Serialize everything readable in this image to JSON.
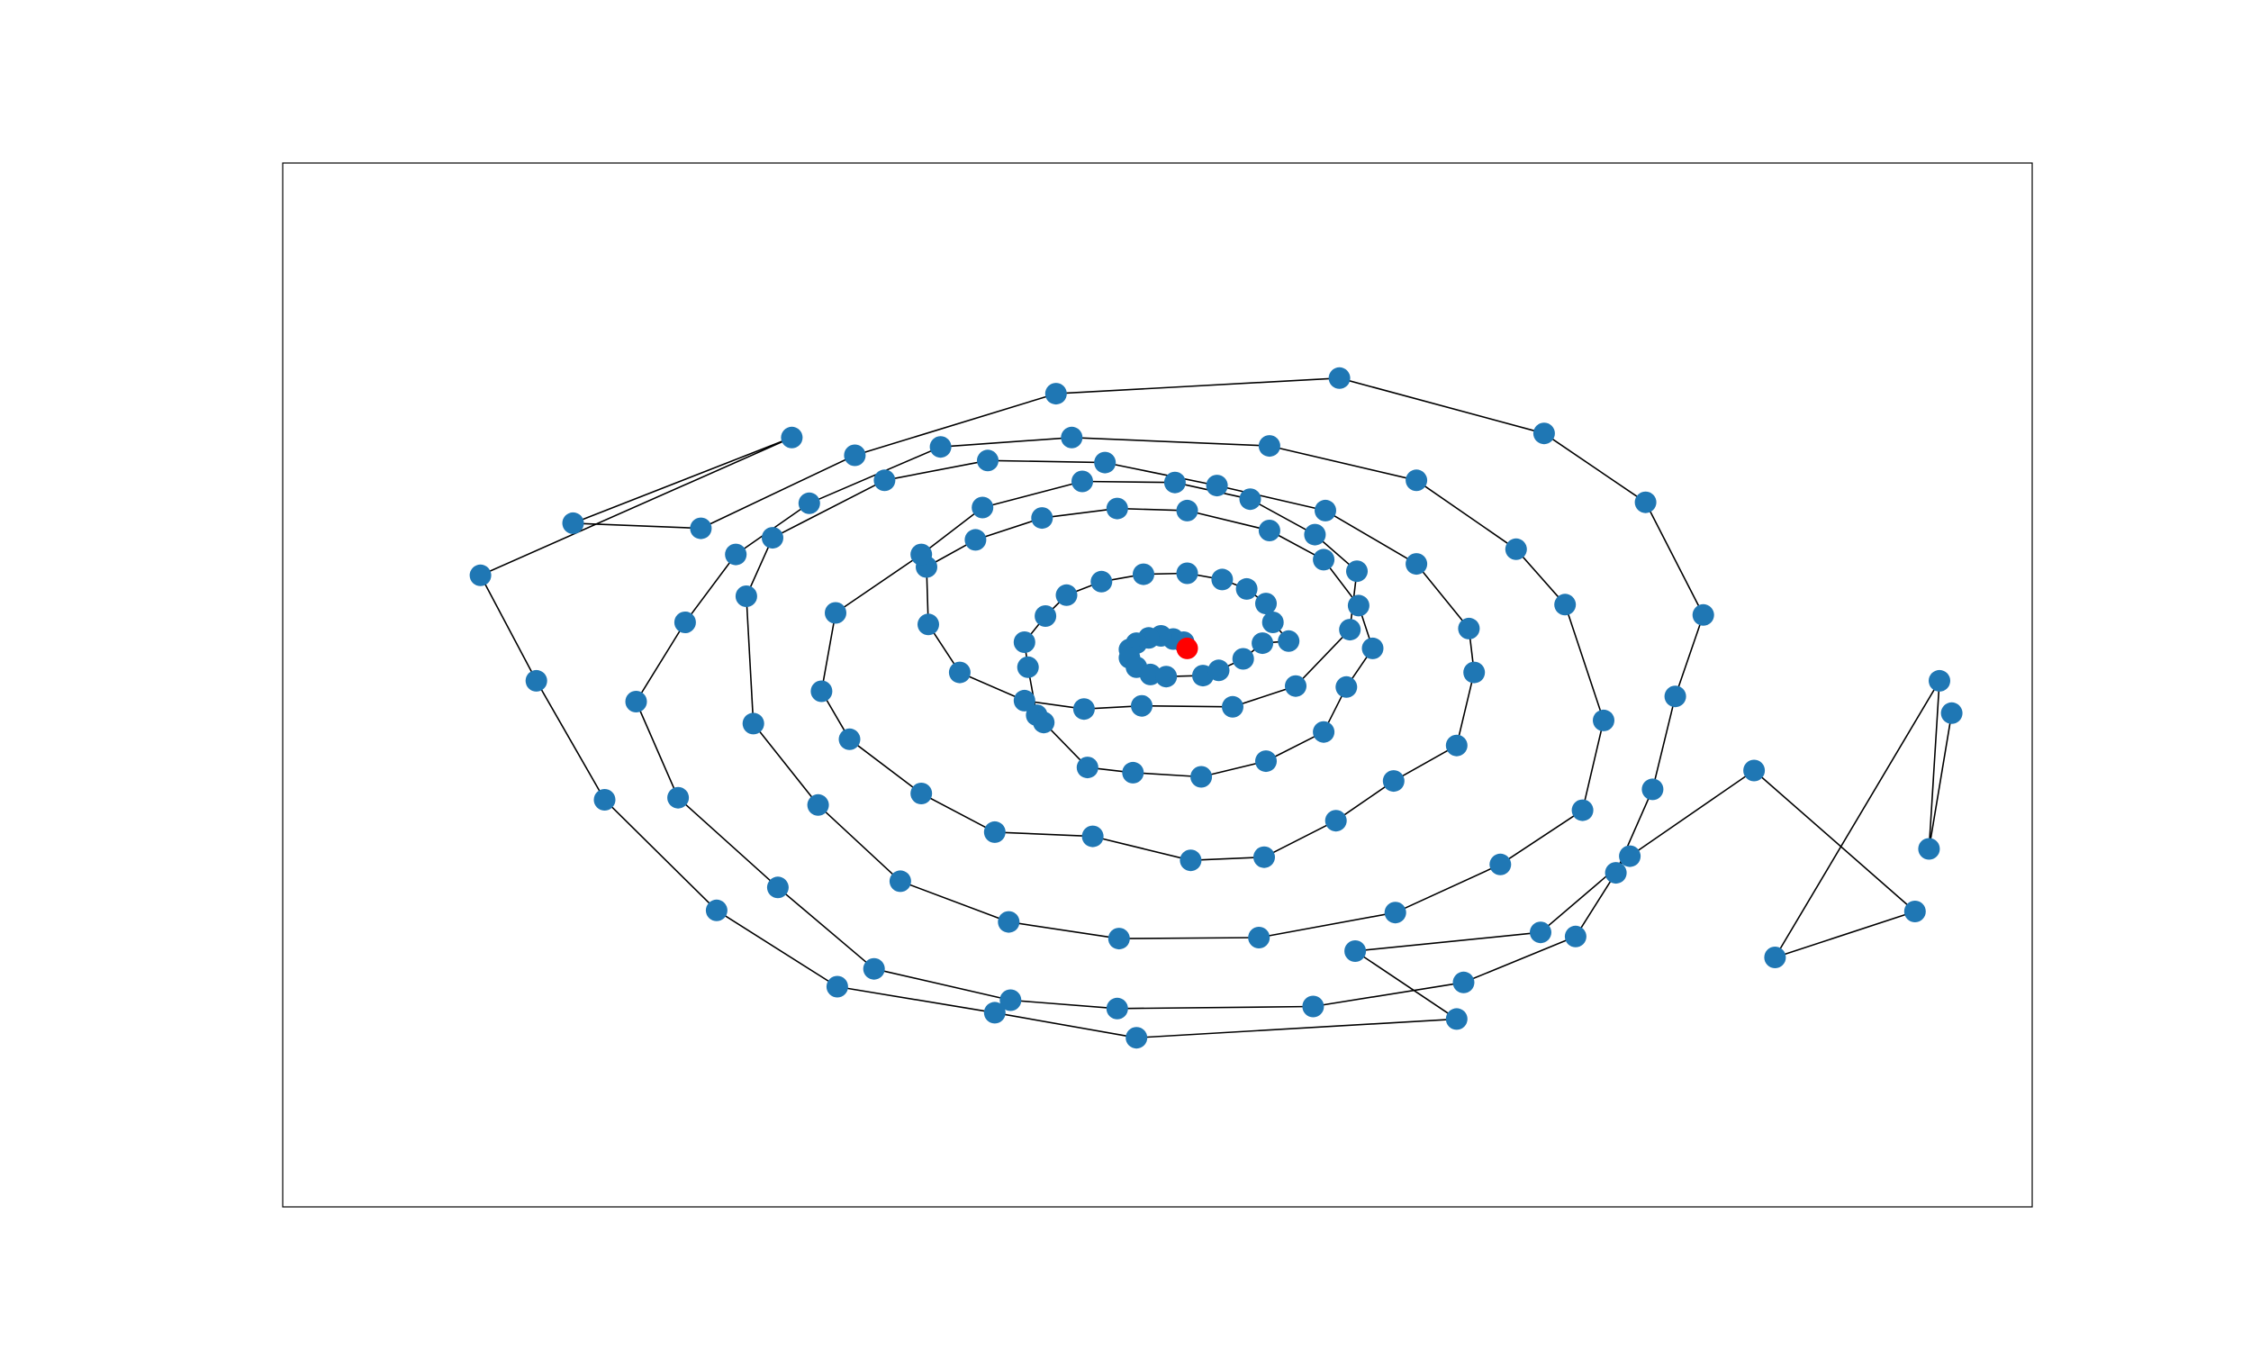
{
  "figure": {
    "description_type": "spiral graph of connected nodes",
    "node_color": "#1f77b4",
    "highlight_color": "#ff0000",
    "edge_color": "#000000",
    "axes_frame": true,
    "ticks_visible": false
  },
  "chart_data": {
    "type": "scatter",
    "connected": true,
    "xlim": [
      0,
      100
    ],
    "ylim": [
      0,
      100
    ],
    "grid": false,
    "highlight_index": 0,
    "points": [
      [
        51.7,
        53.5
      ],
      [
        51.5,
        54.1
      ],
      [
        50.9,
        54.4
      ],
      [
        50.2,
        54.7
      ],
      [
        49.5,
        54.5
      ],
      [
        48.8,
        54.0
      ],
      [
        48.4,
        53.4
      ],
      [
        48.4,
        52.6
      ],
      [
        48.8,
        51.7
      ],
      [
        49.6,
        51.0
      ],
      [
        50.5,
        50.8
      ],
      [
        52.6,
        50.9
      ],
      [
        53.5,
        51.4
      ],
      [
        54.9,
        52.5
      ],
      [
        56.0,
        54.0
      ],
      [
        57.5,
        54.2
      ],
      [
        56.6,
        56.0
      ],
      [
        56.2,
        57.8
      ],
      [
        55.1,
        59.2
      ],
      [
        53.7,
        60.1
      ],
      [
        51.7,
        60.7
      ],
      [
        49.2,
        60.6
      ],
      [
        46.8,
        59.9
      ],
      [
        44.8,
        58.6
      ],
      [
        43.6,
        56.6
      ],
      [
        42.4,
        54.1
      ],
      [
        42.6,
        51.7
      ],
      [
        43.1,
        47.1
      ],
      [
        43.5,
        46.4
      ],
      [
        46.0,
        42.1
      ],
      [
        48.6,
        41.6
      ],
      [
        52.5,
        41.2
      ],
      [
        56.2,
        42.7
      ],
      [
        59.5,
        45.5
      ],
      [
        60.8,
        49.8
      ],
      [
        62.3,
        53.5
      ],
      [
        61.5,
        57.6
      ],
      [
        59.5,
        62.0
      ],
      [
        56.4,
        64.8
      ],
      [
        51.7,
        66.7
      ],
      [
        47.7,
        66.9
      ],
      [
        43.4,
        66.0
      ],
      [
        39.6,
        63.9
      ],
      [
        36.8,
        61.3
      ],
      [
        36.9,
        55.8
      ],
      [
        38.7,
        51.2
      ],
      [
        42.4,
        48.5
      ],
      [
        45.8,
        47.7
      ],
      [
        49.1,
        48.0
      ],
      [
        54.3,
        47.9
      ],
      [
        57.9,
        49.9
      ],
      [
        61.0,
        55.3
      ],
      [
        61.4,
        60.9
      ],
      [
        59.0,
        64.4
      ],
      [
        55.3,
        67.8
      ],
      [
        51.0,
        69.4
      ],
      [
        45.7,
        69.5
      ],
      [
        40.0,
        67.0
      ],
      [
        36.5,
        62.5
      ],
      [
        31.6,
        56.9
      ],
      [
        30.8,
        49.4
      ],
      [
        32.4,
        44.8
      ],
      [
        36.5,
        39.6
      ],
      [
        40.7,
        35.9
      ],
      [
        46.3,
        35.5
      ],
      [
        51.9,
        33.2
      ],
      [
        56.1,
        33.5
      ],
      [
        60.2,
        37.0
      ],
      [
        63.5,
        40.8
      ],
      [
        67.1,
        44.2
      ],
      [
        68.1,
        51.2
      ],
      [
        67.8,
        55.4
      ],
      [
        64.8,
        61.6
      ],
      [
        59.6,
        66.7
      ],
      [
        53.4,
        69.1
      ],
      [
        47.0,
        71.3
      ],
      [
        40.3,
        71.5
      ],
      [
        34.4,
        69.6
      ],
      [
        28.0,
        64.1
      ],
      [
        26.5,
        58.5
      ],
      [
        26.9,
        46.3
      ],
      [
        30.6,
        38.5
      ],
      [
        35.3,
        31.2
      ],
      [
        41.5,
        27.3
      ],
      [
        47.8,
        25.7
      ],
      [
        55.8,
        25.8
      ],
      [
        63.6,
        28.2
      ],
      [
        69.6,
        32.8
      ],
      [
        74.3,
        38.0
      ],
      [
        75.5,
        46.6
      ],
      [
        73.3,
        57.7
      ],
      [
        70.5,
        63.0
      ],
      [
        64.8,
        69.6
      ],
      [
        56.4,
        72.9
      ],
      [
        45.1,
        73.7
      ],
      [
        37.6,
        72.8
      ],
      [
        30.1,
        67.4
      ],
      [
        25.9,
        62.5
      ],
      [
        23.0,
        56.0
      ],
      [
        20.2,
        48.4
      ],
      [
        22.6,
        39.2
      ],
      [
        28.3,
        30.6
      ],
      [
        33.8,
        22.8
      ],
      [
        41.6,
        19.8
      ],
      [
        47.7,
        19.0
      ],
      [
        58.9,
        19.2
      ],
      [
        67.5,
        21.5
      ],
      [
        73.9,
        25.9
      ],
      [
        76.2,
        32.0
      ],
      [
        78.3,
        40.0
      ],
      [
        79.6,
        48.9
      ],
      [
        81.2,
        56.7
      ],
      [
        77.9,
        67.5
      ],
      [
        72.1,
        74.1
      ],
      [
        60.4,
        79.4
      ],
      [
        44.2,
        77.9
      ],
      [
        32.7,
        72.0
      ],
      [
        23.9,
        65.0
      ],
      [
        16.6,
        65.5
      ],
      [
        29.1,
        73.7
      ],
      [
        11.3,
        60.5
      ],
      [
        14.5,
        50.4
      ],
      [
        18.4,
        39.0
      ],
      [
        24.8,
        28.4
      ],
      [
        31.7,
        21.1
      ],
      [
        40.7,
        18.6
      ],
      [
        48.8,
        16.2
      ],
      [
        67.1,
        18.0
      ],
      [
        61.3,
        24.5
      ],
      [
        71.9,
        26.3
      ],
      [
        77.0,
        33.6
      ],
      [
        84.1,
        41.8
      ],
      [
        93.3,
        28.3
      ],
      [
        85.3,
        23.9
      ],
      [
        94.7,
        50.4
      ],
      [
        94.1,
        34.3
      ],
      [
        95.4,
        47.3
      ]
    ]
  }
}
